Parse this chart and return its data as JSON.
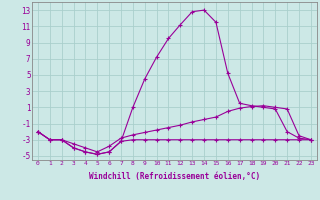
{
  "xlabel": "Windchill (Refroidissement éolien,°C)",
  "background_color": "#cce8e6",
  "grid_color": "#aacfcc",
  "line_color": "#990099",
  "x_hours": [
    0,
    1,
    2,
    3,
    4,
    5,
    6,
    7,
    8,
    9,
    10,
    11,
    12,
    13,
    14,
    15,
    16,
    17,
    18,
    19,
    20,
    21,
    22,
    23
  ],
  "series1": [
    -2.0,
    -3.0,
    -3.0,
    -4.0,
    -4.5,
    -4.8,
    -4.5,
    -3.2,
    1.0,
    4.5,
    7.2,
    9.5,
    11.2,
    12.8,
    13.0,
    11.5,
    5.2,
    1.5,
    1.2,
    1.0,
    0.8,
    -2.0,
    -2.8,
    -3.0
  ],
  "series2": [
    -2.0,
    -3.0,
    -3.0,
    -3.5,
    -4.0,
    -4.5,
    -3.8,
    -2.8,
    -2.4,
    -2.1,
    -1.8,
    -1.5,
    -1.2,
    -0.8,
    -0.5,
    -0.2,
    0.5,
    0.9,
    1.1,
    1.2,
    1.0,
    0.8,
    -2.5,
    -3.0
  ],
  "series3": [
    -2.0,
    -3.0,
    -3.0,
    -4.0,
    -4.5,
    -4.8,
    -4.5,
    -3.2,
    -3.0,
    -3.0,
    -3.0,
    -3.0,
    -3.0,
    -3.0,
    -3.0,
    -3.0,
    -3.0,
    -3.0,
    -3.0,
    -3.0,
    -3.0,
    -3.0,
    -3.0,
    -3.0
  ],
  "ylim": [
    -5.5,
    14
  ],
  "yticks": [
    -5,
    -3,
    -1,
    1,
    3,
    5,
    7,
    9,
    11,
    13
  ],
  "marker": "+"
}
